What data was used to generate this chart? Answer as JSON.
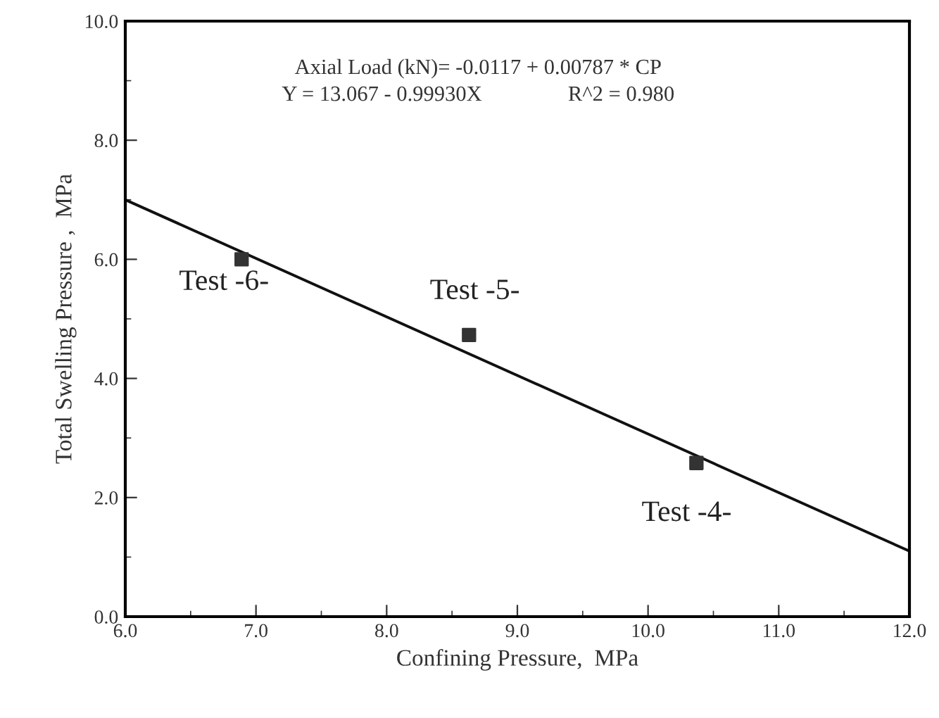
{
  "chart_data": {
    "type": "scatter",
    "xlabel": "Confining Pressure,  MPa",
    "ylabel": "Total Swelling Pressure ,  MPa",
    "series": [
      {
        "color": "#333333",
        "marker": "square",
        "x": [
          6.89,
          8.63,
          10.37
        ],
        "values": [
          6.0,
          4.73,
          2.58
        ]
      },
      {
        "type": "line",
        "color": "#111111",
        "marker": "none",
        "x": [
          6.0,
          12.0
        ],
        "values": [
          7.0,
          1.1
        ]
      }
    ],
    "xlim": [
      6.0,
      12.0
    ],
    "xticks": [
      {
        "value": 6,
        "label": "6.0"
      },
      {
        "value": 7,
        "label": "7.0"
      },
      {
        "value": 8,
        "label": "8.0"
      },
      {
        "value": 9,
        "label": "9.0"
      },
      {
        "value": 10,
        "label": "10.0"
      },
      {
        "value": 11,
        "label": "11.0"
      },
      {
        "value": 12,
        "label": "12.0"
      }
    ],
    "ylim": [
      0.0,
      10.0
    ],
    "yticks": [
      {
        "value": 0,
        "label": "0.0"
      },
      {
        "value": 2,
        "label": "2.0"
      },
      {
        "value": 4,
        "label": "4.0"
      },
      {
        "value": 6,
        "label": "6.0"
      },
      {
        "value": 8,
        "label": "8.0"
      },
      {
        "value": 10,
        "label": "10.0"
      }
    ],
    "annotations": [
      "Axial Load (kN)= -0.0117 + 0.00787 * CP",
      "Y = 13.067 - 0.99930X                R^2 = 0.980",
      {
        "text": "Test -6-",
        "x": 6.89,
        "y": 6.0
      },
      {
        "text": "Test -5-",
        "x": 8.63,
        "y": 4.73
      },
      {
        "text": "Test -4-",
        "x": 10.37,
        "y": 2.58
      }
    ],
    "grid": false,
    "legend": false
  }
}
